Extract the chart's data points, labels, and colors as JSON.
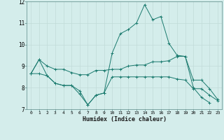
{
  "xlabel": "Humidex (Indice chaleur)",
  "x": [
    0,
    1,
    2,
    3,
    4,
    5,
    6,
    7,
    8,
    9,
    10,
    11,
    12,
    13,
    14,
    15,
    16,
    17,
    18,
    19,
    20,
    21,
    22,
    23
  ],
  "line1": [
    8.65,
    9.3,
    9.0,
    8.85,
    8.85,
    8.7,
    8.6,
    8.6,
    8.8,
    8.8,
    8.85,
    8.85,
    9.0,
    9.05,
    9.05,
    9.2,
    9.2,
    9.25,
    9.45,
    9.45,
    8.35,
    8.35,
    7.95,
    7.45
  ],
  "line2": [
    8.65,
    9.3,
    8.55,
    8.2,
    8.1,
    8.1,
    7.7,
    7.2,
    7.65,
    7.75,
    9.6,
    10.5,
    10.7,
    11.0,
    11.85,
    11.15,
    11.3,
    10.05,
    9.5,
    9.45,
    8.0,
    7.55,
    7.3,
    null
  ],
  "line3": [
    8.65,
    8.65,
    8.55,
    8.2,
    8.1,
    8.1,
    7.85,
    7.2,
    7.65,
    7.75,
    8.5,
    8.5,
    8.5,
    8.5,
    8.5,
    8.5,
    8.5,
    8.5,
    8.4,
    8.35,
    7.95,
    7.95,
    7.65,
    7.4
  ],
  "ylim": [
    7,
    12
  ],
  "xlim_min": -0.5,
  "xlim_max": 23.5,
  "yticks": [
    7,
    8,
    9,
    10,
    11,
    12
  ],
  "xticks": [
    0,
    1,
    2,
    3,
    4,
    5,
    6,
    7,
    8,
    9,
    10,
    11,
    12,
    13,
    14,
    15,
    16,
    17,
    18,
    19,
    20,
    21,
    22,
    23
  ],
  "line_color": "#1a7a6e",
  "bg_color": "#d4edeb",
  "grid_color": "#c0dbd8"
}
